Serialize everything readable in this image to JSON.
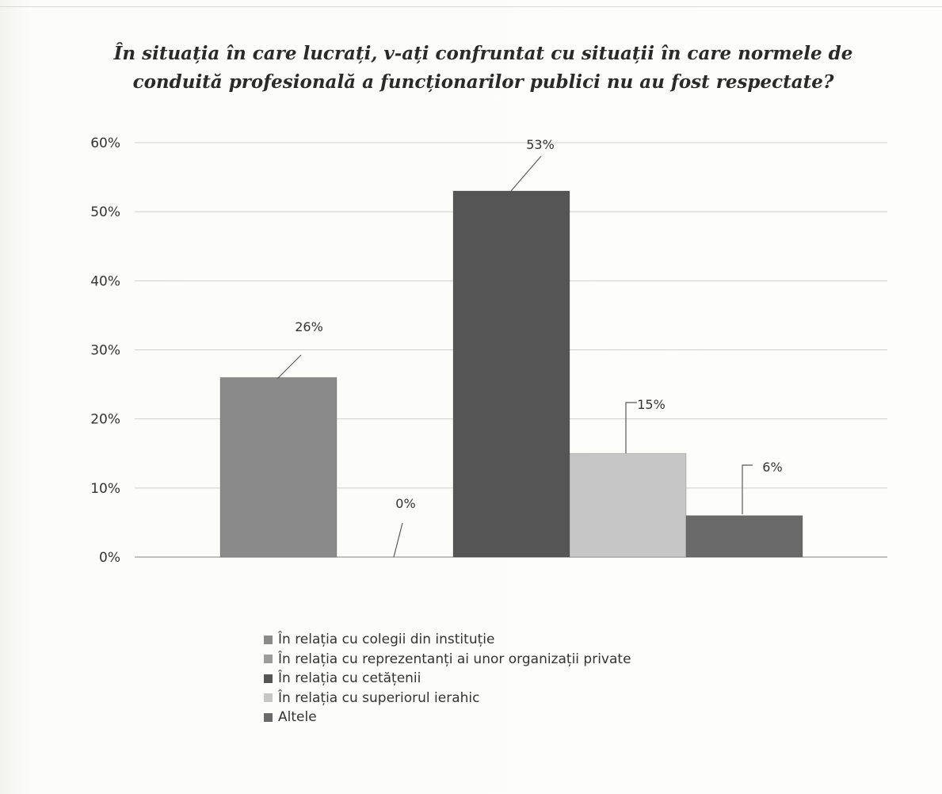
{
  "chart_data": {
    "type": "bar",
    "title_lines": [
      "În situația în care lucrați, v-ați confruntat cu situații în care normele de",
      "conduită profesională a funcționarilor publici nu au fost respectate?"
    ],
    "xlabel": "",
    "ylabel": "",
    "ylim": [
      0,
      60
    ],
    "yticks": [
      "0%",
      "10%",
      "20%",
      "30%",
      "40%",
      "50%",
      "60%"
    ],
    "grid": true,
    "legend_position": "bottom",
    "series": [
      {
        "name": "În relația cu colegii din instituție",
        "value": 26,
        "label": "26%",
        "color": "#8a8a8a"
      },
      {
        "name": "În relația cu reprezentanți ai unor organizații private",
        "value": 0,
        "label": "0%",
        "color": "#9c9c9c"
      },
      {
        "name": "În relația cu cetățenii",
        "value": 53,
        "label": "53%",
        "color": "#555555"
      },
      {
        "name": "În relația cu superiorul ierahic",
        "value": 15,
        "label": "15%",
        "color": "#c6c6c6"
      },
      {
        "name": "Altele",
        "value": 6,
        "label": "6%",
        "color": "#6a6a6a"
      }
    ]
  }
}
